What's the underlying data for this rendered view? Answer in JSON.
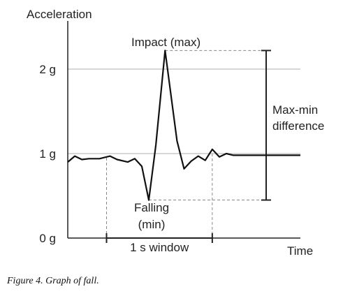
{
  "chart_data": {
    "type": "line",
    "ylabel": "Acceleration",
    "xlabel": "Time",
    "ylim": [
      0,
      2.3
    ],
    "xlim": [
      0,
      3.3
    ],
    "yticks": [
      {
        "value": 0,
        "label": "0 g"
      },
      {
        "value": 1,
        "label": "1 g"
      },
      {
        "value": 2,
        "label": "2 g"
      }
    ],
    "grid": "horizontal",
    "x": [
      0.0,
      0.1,
      0.2,
      0.3,
      0.45,
      0.6,
      0.7,
      0.85,
      0.95,
      1.05,
      1.15,
      1.25,
      1.38,
      1.55,
      1.65,
      1.75,
      1.85,
      1.95,
      2.05,
      2.15,
      2.25,
      2.35,
      2.45,
      3.3
    ],
    "y": [
      0.9,
      0.97,
      0.93,
      0.94,
      0.94,
      0.97,
      0.93,
      0.9,
      0.94,
      0.85,
      0.45,
      1.1,
      2.22,
      1.15,
      0.82,
      0.91,
      0.97,
      0.92,
      1.05,
      0.96,
      1.0,
      0.98,
      0.98,
      0.98
    ],
    "annotations": {
      "impact": "Impact (max)",
      "falling_line1": "Falling",
      "falling_line2": "(min)",
      "difference_line1": "Max-min",
      "difference_line2": "difference",
      "window": "1 s window"
    },
    "min_point": {
      "x": 1.15,
      "y": 0.45
    },
    "max_point": {
      "x": 1.38,
      "y": 2.22
    },
    "window_range": [
      0.55,
      2.05
    ]
  },
  "caption": {
    "prefix": "Figure 4.",
    "text": "Graph of fall."
  }
}
